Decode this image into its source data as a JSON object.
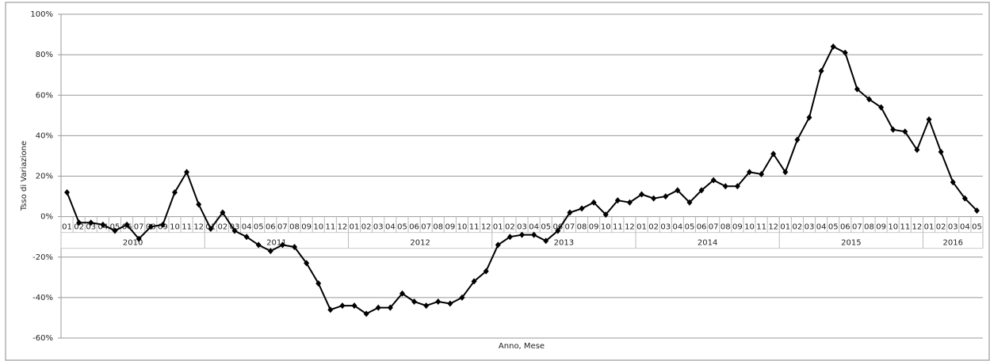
{
  "chart_data": {
    "type": "line",
    "y_label": "Tsso di Variazione",
    "x_label": "Anno, Mese",
    "year_groups": [
      {
        "year": "2010",
        "months": [
          "01",
          "02",
          "03",
          "04",
          "05",
          "06",
          "07",
          "08",
          "09",
          "10",
          "11",
          "12"
        ]
      },
      {
        "year": "2011",
        "months": [
          "01",
          "02",
          "03",
          "04",
          "05",
          "06",
          "07",
          "08",
          "09",
          "10",
          "11",
          "12"
        ]
      },
      {
        "year": "2012",
        "months": [
          "01",
          "02",
          "03",
          "04",
          "05",
          "06",
          "07",
          "08",
          "09",
          "10",
          "11",
          "12"
        ]
      },
      {
        "year": "2013",
        "months": [
          "01",
          "02",
          "03",
          "04",
          "05",
          "06",
          "07",
          "08",
          "09",
          "10",
          "11",
          "12"
        ]
      },
      {
        "year": "2014",
        "months": [
          "01",
          "02",
          "03",
          "04",
          "05",
          "06",
          "07",
          "08",
          "09",
          "10",
          "11",
          "12"
        ]
      },
      {
        "year": "2015",
        "months": [
          "01",
          "02",
          "03",
          "04",
          "05",
          "06",
          "07",
          "08",
          "09",
          "10",
          "11",
          "12"
        ]
      },
      {
        "year": "2016",
        "months": [
          "01",
          "02",
          "03",
          "04",
          "05"
        ]
      }
    ],
    "color": "#000000",
    "values": [
      12,
      -3,
      -3,
      -4,
      -7,
      -4,
      -11,
      -5,
      -4,
      12,
      22,
      6,
      -6,
      2,
      -7,
      -10,
      -14,
      -17,
      -14,
      -15,
      -23,
      -33,
      -46,
      -44,
      -44,
      -48,
      -45,
      -45,
      -38,
      -42,
      -44,
      -42,
      -43,
      -40,
      -32,
      -27,
      -14,
      -10,
      -9,
      -9,
      -12,
      -7,
      2,
      4,
      7,
      1,
      8,
      7,
      11,
      9,
      10,
      13,
      7,
      13,
      18,
      15,
      15,
      22,
      21,
      31,
      22,
      38,
      49,
      72,
      84,
      81,
      63,
      58,
      54,
      43,
      42,
      33,
      48,
      32,
      17,
      9,
      3
    ],
    "ylim": [
      -60,
      100
    ],
    "yticks": [
      {
        "value": -60,
        "label": "-60%"
      },
      {
        "value": -40,
        "label": "-40%"
      },
      {
        "value": -20,
        "label": "-20%"
      },
      {
        "value": 0,
        "label": "0%"
      },
      {
        "value": 20,
        "label": "20%"
      },
      {
        "value": 40,
        "label": "40%"
      },
      {
        "value": 60,
        "label": "60%"
      },
      {
        "value": 80,
        "label": "80%"
      },
      {
        "value": 100,
        "label": "100%"
      }
    ],
    "grid": true
  }
}
